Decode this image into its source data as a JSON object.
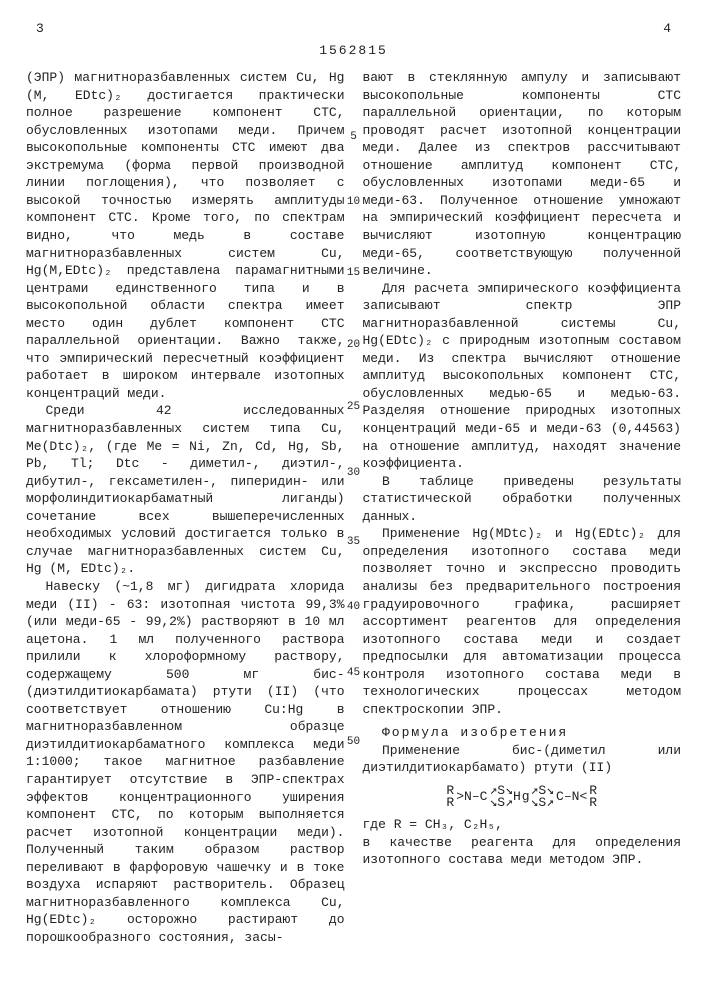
{
  "docid": "1562815",
  "pagenum_left": "3",
  "pagenum_right": "4",
  "gutters": [
    "5",
    "10",
    "15",
    "20",
    "25",
    "30",
    "35",
    "40",
    "45",
    "50"
  ],
  "left": {
    "p1": "(ЭПР) магнитноразбавленных систем Cu, Hg (M, EDtc)₂ достигается практически полное разрешение компонент СТС, обусловленных изотопами меди. Причем высокопольные компоненты СТС имеют два экстремума (форма первой производной линии поглощения), что позволяет с высокой точностью измерять амплитуды компонент СТС. Кроме того, по спектрам видно, что медь в составе магнитноразбавленных систем Cu, Hg(M,EDtc)₂ представлена парамагнитными центрами единственного типа и в высокопольной области спектра имеет место один дублет компонент СТС параллельной ориентации. Важно также, что эмпирический пересчетный коэффициент работает в широком интервале изотопных концентраций меди.",
    "p2": "Среди 42 исследованных магнитноразбавленных систем типа Cu, Me(Dtc)₂, (где Me = Ni, Zn, Cd, Hg, Sb, Pb, Tl; Dtc - диметил-, диэтил-, дибутил-, гексаметилен-, пиперидин- или морфолиндитиокарбаматный лиганды) сочетание всех вышеперечисленных необходимых условий достигается только в случае магнитноразбавленных систем Cu, Hg (M, EDtc)₂.",
    "p3": "Навеску (~1,8 мг) дигидрата хлорида меди (II) - 63: изотопная чистота 99,3% (или меди-65 - 99,2%) растворяют в 10 мл ацетона. 1 мл полученного раствора прилили к хлороформному раствору, содержащему 500 мг бис-(диэтилдитиокарбамата) ртути (II) (что соответствует отношению Cu:Hg в магнитноразбавленном образце диэтилдитиокарбаматного комплекса меди 1:1000; такое магнитное разбавление гарантирует отсутствие в ЭПР-спектрах эффектов концентрационного уширения компонент СТС, по которым выполняется расчет изотопной концентрации меди). Полученный таким образом раствор переливают в фарфоровую чашечку и в токе воздуха испаряют растворитель. Образец магнитноразбавленного комплекса Cu, Hg(EDtc)₂ осторожно растирают до порошкообразного состояния, засы-"
  },
  "right": {
    "p1": "вают в стеклянную ампулу и записывают высокопольные компоненты СТС параллельной ориентации, по которым проводят расчет изотопной концентрации меди. Далее из спектров рассчитывают отношение амплитуд компонент СТС, обусловленных изотопами меди-65 и меди-63. Полученное отношение умножают на эмпирический коэффициент пересчета и вычисляют изотопную концентрацию меди-65, соответствующую полученной величине.",
    "p2": "Для расчета эмпирического коэффициента записывают спектр ЭПР магнитноразбавленной системы Cu, Hg(EDtc)₂ с природным изотопным составом меди. Из спектра вычисляют отношение амплитуд высокопольных компонент СТС, обусловленных медью-65 и медью-63. Разделяя отношение природных изотопных концентраций меди-65 и меди-63 (0,44563) на отношение амплитуд, находят значение коэффициента.",
    "p3": "В таблице приведены результаты статистической обработки полученных данных.",
    "p4": "Применение Hg(MDtc)₂ и Hg(EDtc)₂ для определения изотопного состава меди позволяет точно и экспрессно проводить анализы без предварительного построения градуировочного графика, расширяет ассортимент реагентов для определения изотопного состава меди и создает предпосылки для автоматизации процесса контроля изотопного состава меди в технологических процессах методом спектроскопии ЭПР.",
    "ftitle": "Формула изобретения",
    "fp1": "Применение бис-(диметил или диэтилдитиокарбамато) ртути (II)",
    "chem": {
      "R": "R",
      "N": "N",
      "C": "C",
      "S": "S",
      "Hg": "Hg"
    },
    "fp2": "где R = CH₃, C₂H₅,",
    "fp3": "в качестве реагента для определения изотопного состава меди методом ЭПР."
  }
}
